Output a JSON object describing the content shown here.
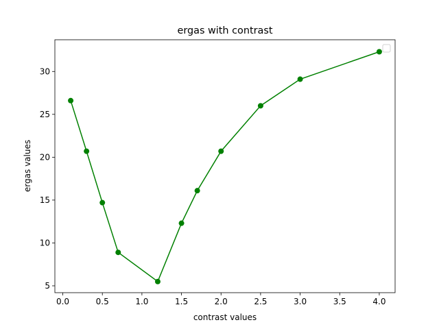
{
  "chart_data": {
    "type": "line",
    "title": "ergas with contrast",
    "xlabel": "contrast values",
    "ylabel": "ergas values",
    "xlim": [
      -0.1,
      4.2
    ],
    "ylim": [
      4.2,
      33.7
    ],
    "xticks": [
      0.0,
      0.5,
      1.0,
      1.5,
      2.0,
      2.5,
      3.0,
      3.5,
      4.0
    ],
    "xtick_labels": [
      "0.0",
      "0.5",
      "1.0",
      "1.5",
      "2.0",
      "2.5",
      "3.0",
      "3.5",
      "4.0"
    ],
    "yticks": [
      5,
      10,
      15,
      20,
      25,
      30
    ],
    "ytick_labels": [
      "5",
      "10",
      "15",
      "20",
      "25",
      "30"
    ],
    "grid": false,
    "legend": "top-right, empty",
    "series": [
      {
        "color": "#008000",
        "marker": "circle",
        "x": [
          0.1,
          0.3,
          0.5,
          0.7,
          1.2,
          1.5,
          1.7,
          2.0,
          2.5,
          3.0,
          4.0
        ],
        "y": [
          26.6,
          20.7,
          14.7,
          8.9,
          5.5,
          12.3,
          16.1,
          20.7,
          26.0,
          29.1,
          32.3
        ]
      }
    ]
  }
}
